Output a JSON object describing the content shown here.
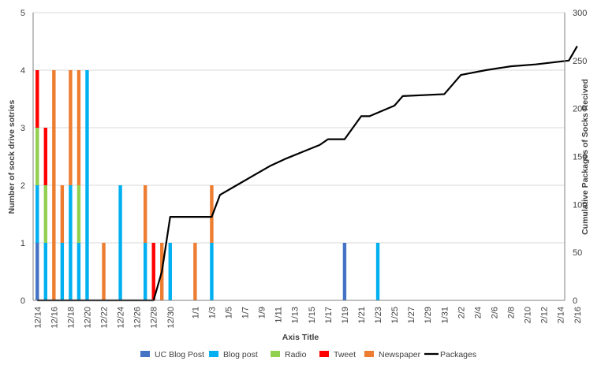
{
  "chart_data": {
    "type": "bar",
    "stacked": true,
    "combo_line": "Packages",
    "title": "",
    "xlabel": "Axis Title",
    "ylabel": "Number of sock drive sotries",
    "y2label": "Cumulative Packages of Socks Recived",
    "ylim": [
      0,
      5
    ],
    "y2lim": [
      0,
      300
    ],
    "yticks": [
      "0",
      "1",
      "2",
      "3",
      "4",
      "5"
    ],
    "y2ticks": [
      "0",
      "50",
      "100",
      "150",
      "200",
      "250",
      "300"
    ],
    "grid": true,
    "legend_position": "bottom",
    "x_labels": [
      "12/14",
      "12/16",
      "12/18",
      "12/20",
      "12/22",
      "12/24",
      "12/26",
      "12/28",
      "12/30",
      "1/1",
      "1/3",
      "1/5",
      "1/7",
      "1/9",
      "1/11",
      "1/13",
      "1/15",
      "1/17",
      "1/19",
      "1/21",
      "1/23",
      "1/25",
      "1/27",
      "1/29",
      "1/31",
      "2/2",
      "2/4",
      "2/6",
      "2/8",
      "2/10",
      "2/12",
      "2/14",
      "2/16"
    ],
    "start_date": "12/14",
    "series": [
      {
        "name": "UC Blog Post",
        "color": "#4472C4",
        "type": "bar",
        "points": [
          [
            "12/14",
            1
          ],
          [
            "1/19",
            1
          ]
        ]
      },
      {
        "name": "Blog post",
        "color": "#00B0F0",
        "type": "bar",
        "points": [
          [
            "12/14",
            1
          ],
          [
            "12/15",
            1
          ],
          [
            "12/17",
            1
          ],
          [
            "12/18",
            2
          ],
          [
            "12/19",
            1
          ],
          [
            "12/20",
            4
          ],
          [
            "12/24",
            2
          ],
          [
            "12/27",
            1
          ],
          [
            "12/30",
            1
          ],
          [
            "1/3",
            1
          ],
          [
            "1/23",
            1
          ]
        ]
      },
      {
        "name": "Radio",
        "color": "#92D050",
        "type": "bar",
        "points": [
          [
            "12/14",
            1
          ],
          [
            "12/15",
            1
          ],
          [
            "12/19",
            1
          ]
        ]
      },
      {
        "name": "Tweet",
        "color": "#FF0000",
        "type": "bar",
        "points": [
          [
            "12/14",
            1
          ],
          [
            "12/15",
            1
          ],
          [
            "12/28",
            1
          ]
        ]
      },
      {
        "name": "Newspaper",
        "color": "#ED7D31",
        "type": "bar",
        "points": [
          [
            "12/16",
            4
          ],
          [
            "12/17",
            1
          ],
          [
            "12/18",
            2
          ],
          [
            "12/19",
            2
          ],
          [
            "12/22",
            1
          ],
          [
            "12/27",
            1
          ],
          [
            "12/29",
            1
          ],
          [
            "1/1",
            1
          ],
          [
            "1/3",
            1
          ]
        ]
      },
      {
        "name": "Packages",
        "color": "#000000",
        "type": "line",
        "axis": "secondary",
        "points": [
          [
            "12/14",
            0
          ],
          [
            "12/28",
            0
          ],
          [
            "12/29",
            30
          ],
          [
            "12/30",
            87
          ],
          [
            "1/3",
            87
          ],
          [
            "1/4",
            110
          ],
          [
            "1/6",
            120
          ],
          [
            "1/8",
            130
          ],
          [
            "1/10",
            140
          ],
          [
            "1/12",
            148
          ],
          [
            "1/14",
            155
          ],
          [
            "1/16",
            162
          ],
          [
            "1/17",
            168
          ],
          [
            "1/19",
            168
          ],
          [
            "1/21",
            192
          ],
          [
            "1/22",
            192
          ],
          [
            "1/25",
            203
          ],
          [
            "1/26",
            213
          ],
          [
            "1/31",
            215
          ],
          [
            "2/2",
            235
          ],
          [
            "2/5",
            240
          ],
          [
            "2/8",
            244
          ],
          [
            "2/11",
            246
          ],
          [
            "2/15",
            250
          ],
          [
            "2/16",
            265
          ]
        ]
      }
    ]
  }
}
